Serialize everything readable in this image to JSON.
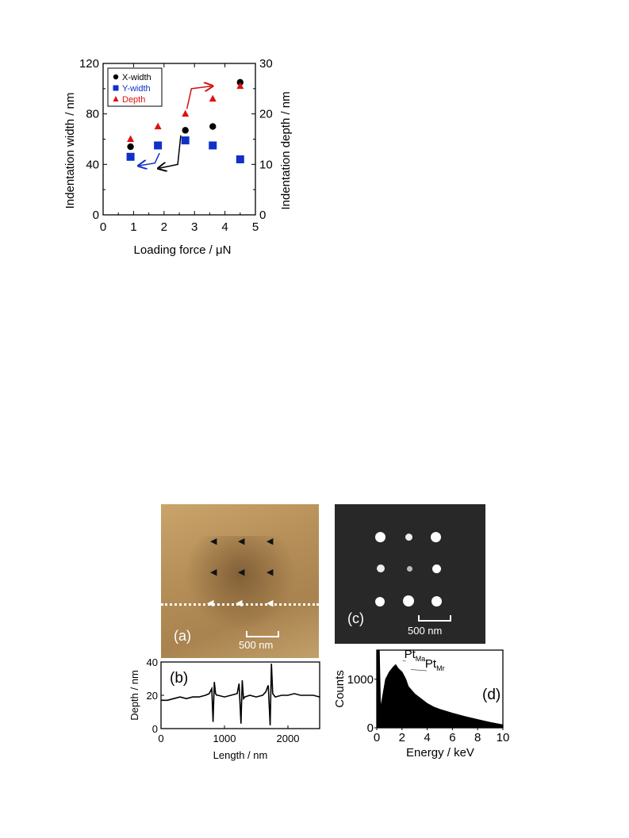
{
  "chart_data": [
    {
      "type": "scatter",
      "xlabel": "Loading force / μN",
      "ylabel": "Indentation width / nm",
      "y2label": "Indentation depth / nm",
      "xlim": [
        0,
        5
      ],
      "ylim": [
        0,
        120
      ],
      "y2lim": [
        0,
        30
      ],
      "xticks": [
        "0",
        "1",
        "2",
        "3",
        "4",
        "5"
      ],
      "yticks": [
        "0",
        "40",
        "80",
        "120"
      ],
      "y2ticks": [
        "0",
        "10",
        "20",
        "30"
      ],
      "legend_position": "top-left",
      "series": [
        {
          "name": "X-width",
          "axis": "left",
          "marker": "circle",
          "color": "#000000",
          "x": [
            0.9,
            1.8,
            2.7,
            3.6,
            4.5
          ],
          "y": [
            54,
            55,
            67,
            70,
            105
          ]
        },
        {
          "name": "Y-width",
          "axis": "left",
          "marker": "square",
          "color": "#1030c8",
          "x": [
            0.9,
            1.8,
            2.7,
            3.6,
            4.5
          ],
          "y": [
            46,
            55,
            59,
            55,
            44
          ]
        },
        {
          "name": "Depth",
          "axis": "right",
          "marker": "triangle",
          "color": "#e01010",
          "x": [
            0.9,
            1.8,
            2.7,
            3.6,
            4.5
          ],
          "y": [
            15,
            17.5,
            20,
            23,
            25.5
          ]
        }
      ]
    },
    {
      "type": "line",
      "label": "(b)",
      "xlabel": "Length / nm",
      "ylabel": "Depth / nm",
      "xlim": [
        0,
        2500
      ],
      "ylim": [
        0,
        40
      ],
      "xticks": [
        "0",
        "1000",
        "2000"
      ],
      "yticks": [
        "0",
        "20",
        "40"
      ],
      "series": [
        {
          "x": [
            0,
            100,
            200,
            300,
            400,
            500,
            600,
            700,
            760,
            800,
            820,
            840,
            860,
            880,
            900,
            1000,
            1100,
            1200,
            1230,
            1260,
            1280,
            1300,
            1320,
            1400,
            1500,
            1600,
            1650,
            1690,
            1720,
            1740,
            1760,
            1780,
            1800,
            1900,
            2000,
            2100,
            2200,
            2300,
            2400,
            2500
          ],
          "y": [
            17,
            17,
            18,
            19,
            18,
            19,
            19,
            20,
            21,
            24,
            4,
            28,
            21,
            20,
            20,
            19,
            20,
            21,
            27,
            3,
            29,
            18,
            19,
            20,
            19,
            20,
            22,
            26,
            2,
            39,
            21,
            20,
            19,
            20,
            20,
            21,
            20,
            20,
            20,
            19
          ]
        }
      ]
    },
    {
      "type": "area",
      "label": "(d)",
      "xlabel": "Energy / keV",
      "ylabel": "Counts",
      "xlim": [
        0,
        10
      ],
      "ylim": [
        0,
        1600
      ],
      "xticks": [
        "0",
        "2",
        "4",
        "6",
        "8",
        "10"
      ],
      "yticks": [
        "0",
        "1000"
      ],
      "annotations": [
        {
          "text": "Pt",
          "sub": "Ma",
          "x": 2.05,
          "y": 1380
        },
        {
          "text": "Pt",
          "sub": "Mr",
          "x": 2.7,
          "y": 1200
        }
      ],
      "series": [
        {
          "x": [
            0,
            0.2,
            0.3,
            0.5,
            0.7,
            1.0,
            1.3,
            1.5,
            1.7,
            2.0,
            2.3,
            2.5,
            3.0,
            3.5,
            4.0,
            4.5,
            5.0,
            6.0,
            7.0,
            8.0,
            9.0,
            10.0
          ],
          "y": [
            1600,
            1600,
            400,
            700,
            1000,
            1150,
            1250,
            1300,
            1220,
            1150,
            1000,
            850,
            700,
            600,
            500,
            430,
            380,
            300,
            230,
            170,
            110,
            60
          ]
        }
      ]
    }
  ],
  "images": {
    "afm": {
      "label": "(a)",
      "scale_label": "500 nm"
    },
    "sem": {
      "label": "(c)",
      "scale_label": "500 nm"
    }
  }
}
